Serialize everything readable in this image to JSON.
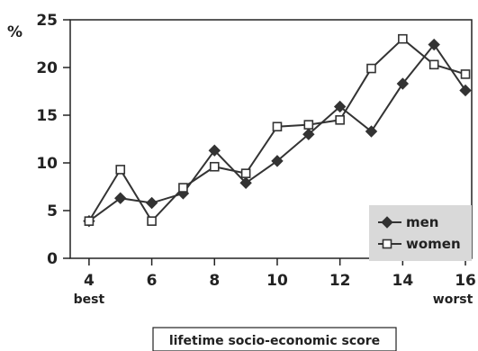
{
  "chart_data": {
    "type": "line",
    "ylabel": "%",
    "xlabel": "lifetime socio-economic score",
    "x_endpoint_labels": {
      "left": "best",
      "right": "worst"
    },
    "xlim": [
      3.4,
      16.2
    ],
    "ylim": [
      0,
      25
    ],
    "x_ticks": [
      4,
      6,
      8,
      10,
      12,
      14,
      16
    ],
    "y_ticks": [
      0,
      5,
      10,
      15,
      20,
      25
    ],
    "grid": false,
    "legend_position": "bottom-right",
    "x": [
      4,
      5,
      6,
      7,
      8,
      9,
      10,
      11,
      12,
      13,
      14,
      15,
      16
    ],
    "series": [
      {
        "name": "men",
        "marker": "diamond-filled",
        "values": [
          3.9,
          6.3,
          5.8,
          6.8,
          11.3,
          7.9,
          10.2,
          13.0,
          15.9,
          13.3,
          18.3,
          22.4,
          17.6
        ]
      },
      {
        "name": "women",
        "marker": "square-open",
        "values": [
          3.9,
          9.3,
          3.9,
          7.4,
          9.6,
          8.9,
          13.8,
          14.0,
          14.5,
          19.9,
          23.0,
          20.3,
          19.3
        ]
      }
    ]
  }
}
